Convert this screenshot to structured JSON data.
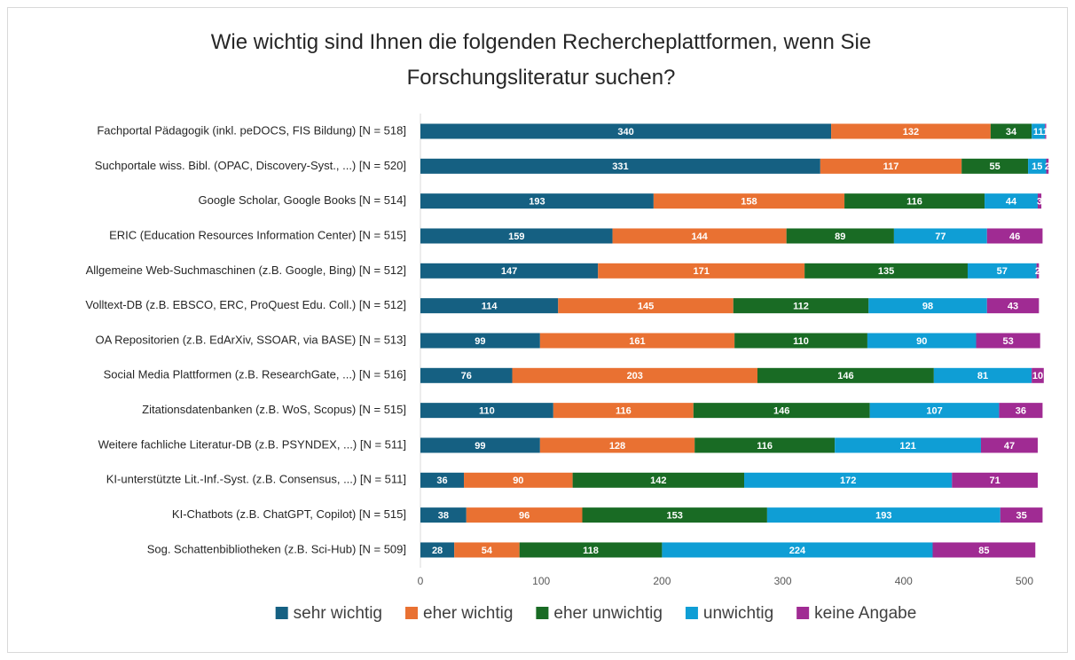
{
  "chart_data": {
    "type": "stacked_barh",
    "title": "Wie wichtig sind Ihnen die folgenden Rechercheplattformen, wenn Sie Forschungsliteratur suchen?",
    "categories": [
      "Fachportal Pädagogik (inkl. peDOCS, FIS Bildung) [N = 518]",
      "Suchportale wiss. Bibl. (OPAC, Discovery-Syst., ...) [N = 520]",
      "Google Scholar, Google Books [N = 514]",
      "ERIC (Education Resources Information Center) [N = 515]",
      "Allgemeine Web-Suchmaschinen (z.B. Google, Bing) [N = 512]",
      "Volltext-DB (z.B. EBSCO, ERC, ProQuest Edu. Coll.) [N = 512]",
      "OA Repositorien (z.B. EdArXiv, SSOAR, via BASE) [N = 513]",
      "Social Media Plattformen (z.B. ResearchGate, ...) [N = 516]",
      "Zitationsdatenbanken (z.B. WoS, Scopus) [N = 515]",
      "Weitere fachliche Literatur-DB (z.B. PSYNDEX, ...) [N = 511]",
      "KI-unterstützte Lit.-Inf.-Syst. (z.B. Consensus, ...) [N = 511]",
      "KI-Chatbots (z.B. ChatGPT, Copilot) [N = 515]",
      "Sog. Schattenbibliotheken (z.B. Sci-Hub) [N = 509]"
    ],
    "series": [
      {
        "name": "sehr wichtig",
        "color": "#156082",
        "values": [
          340,
          331,
          193,
          159,
          147,
          114,
          99,
          76,
          110,
          99,
          36,
          38,
          28
        ]
      },
      {
        "name": "eher wichtig",
        "color": "#E97132",
        "values": [
          132,
          117,
          158,
          144,
          171,
          145,
          161,
          203,
          116,
          128,
          90,
          96,
          54
        ]
      },
      {
        "name": "eher unwichtig",
        "color": "#196B24",
        "values": [
          34,
          55,
          116,
          89,
          135,
          112,
          110,
          146,
          146,
          116,
          142,
          153,
          118
        ]
      },
      {
        "name": "unwichtig",
        "color": "#0F9ED5",
        "values": [
          11,
          15,
          44,
          77,
          57,
          98,
          90,
          81,
          107,
          121,
          172,
          193,
          224
        ]
      },
      {
        "name": "keine Angabe",
        "color": "#A02B93",
        "values": [
          1,
          2,
          3,
          46,
          2,
          43,
          53,
          10,
          36,
          47,
          71,
          35,
          85
        ]
      }
    ],
    "xlim": [
      0,
      520
    ],
    "xticks": [
      0,
      100,
      200,
      300,
      400,
      500
    ],
    "legend": "bottom"
  }
}
